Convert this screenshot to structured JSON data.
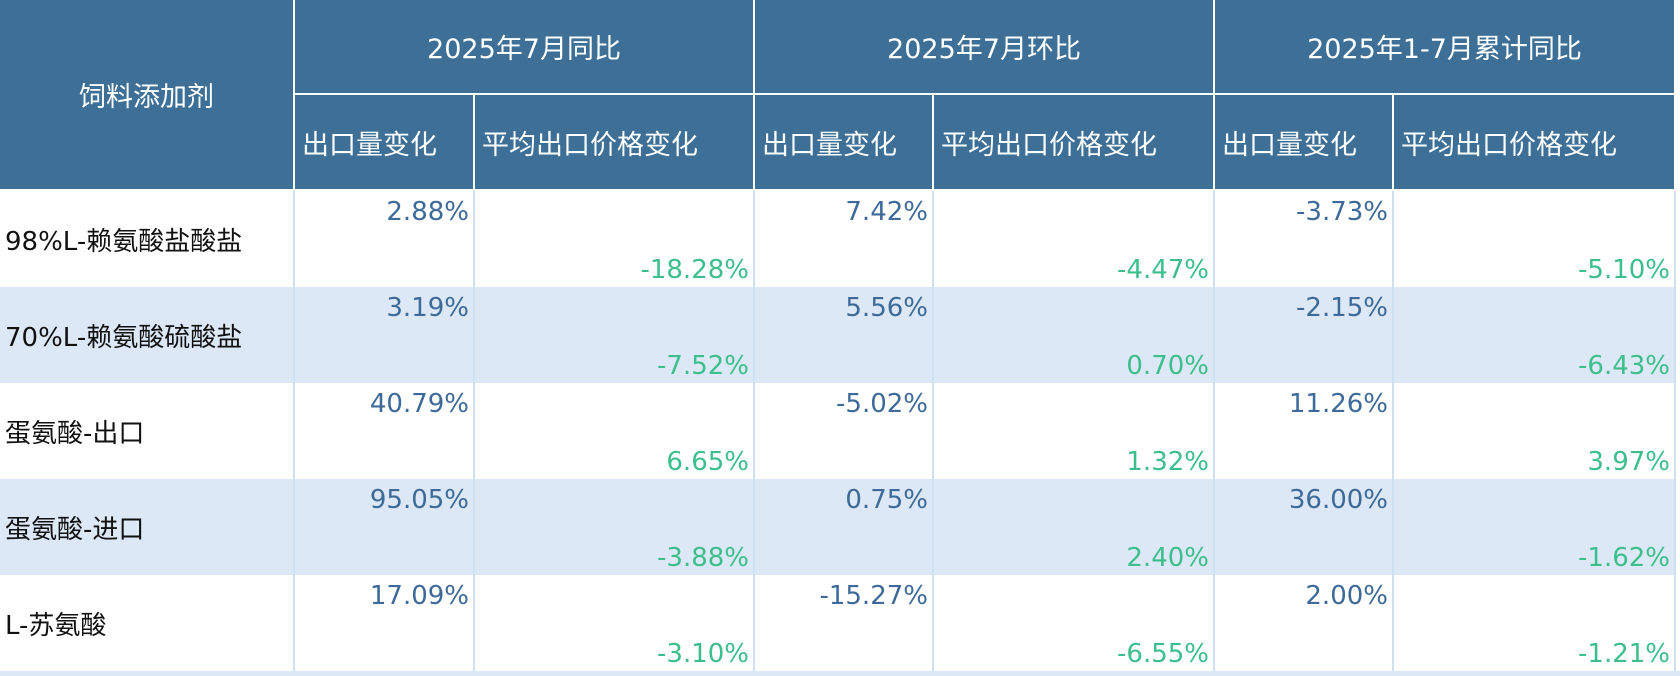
{
  "header": {
    "row_label": "饲料添加剂",
    "groups": [
      {
        "title": "2025年7月同比",
        "columns": [
          "出口量变化",
          "平均出口价格变化"
        ]
      },
      {
        "title": "2025年7月环比",
        "columns": [
          "出口量变化",
          "平均出口价格变化"
        ]
      },
      {
        "title": "2025年1-7月累计同比",
        "columns": [
          "出口量变化",
          "平均出口价格变化"
        ]
      }
    ]
  },
  "rows": [
    {
      "name": "98%L-赖氨酸盐酸盐",
      "cells": [
        "2.88%",
        "-18.28%",
        "7.42%",
        "-4.47%",
        "-3.73%",
        "-5.10%"
      ]
    },
    {
      "name": "70%L-赖氨酸硫酸盐",
      "cells": [
        "3.19%",
        "-7.52%",
        "5.56%",
        "0.70%",
        "-2.15%",
        "-6.43%"
      ]
    },
    {
      "name": "蛋氨酸-出口",
      "cells": [
        "40.79%",
        "6.65%",
        "-5.02%",
        "1.32%",
        "11.26%",
        "3.97%"
      ]
    },
    {
      "name": "蛋氨酸-进口",
      "cells": [
        "95.05%",
        "-3.88%",
        "0.75%",
        "2.40%",
        "36.00%",
        "-1.62%"
      ]
    },
    {
      "name": "L-苏氨酸",
      "cells": [
        "17.09%",
        "-3.10%",
        "-15.27%",
        "-6.55%",
        "2.00%",
        "-1.21%"
      ]
    }
  ]
}
